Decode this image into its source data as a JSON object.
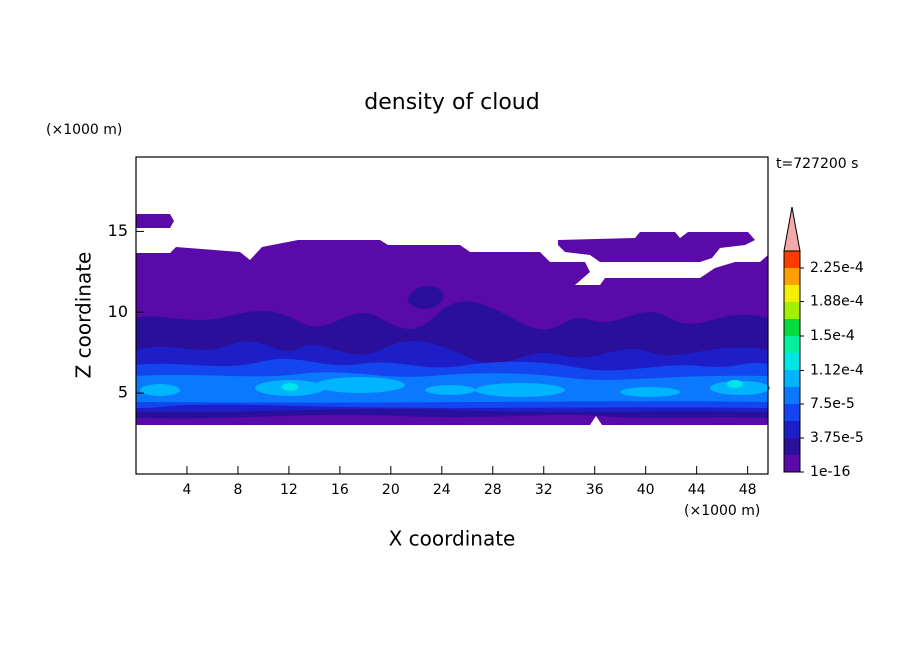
{
  "chart_data": {
    "type": "contour",
    "title": "density of cloud",
    "x_label": "X coordinate",
    "y_label": "Z coordinate",
    "x_unit": "(×1000 m)",
    "y_unit": "(×1000 m)",
    "time_label": "t=727200 s",
    "xlim": [
      0,
      49.6
    ],
    "ylim": [
      0,
      19.6
    ],
    "xticks": [
      4,
      8,
      12,
      16,
      20,
      24,
      28,
      32,
      36,
      40,
      44,
      48
    ],
    "yticks": [
      5,
      10,
      15
    ],
    "colorbar": {
      "ticks": [
        {
          "value": 1e-16,
          "label": "1e-16"
        },
        {
          "value": 3.75e-05,
          "label": "3.75e-5"
        },
        {
          "value": 7.5e-05,
          "label": "7.5e-5"
        },
        {
          "value": 0.000112,
          "label": "1.12e-4"
        },
        {
          "value": 0.00015,
          "label": "1.5e-4"
        },
        {
          "value": 0.000188,
          "label": "1.88e-4"
        },
        {
          "value": 0.000225,
          "label": "2.25e-4"
        }
      ],
      "colors": [
        "#5a0aa8",
        "#2a0f9a",
        "#1e1ec8",
        "#1446f0",
        "#0a78ff",
        "#00b4ff",
        "#00e6e6",
        "#00f0a0",
        "#00dc3c",
        "#a0f000",
        "#f0f000",
        "#ffa000",
        "#ff3c00"
      ],
      "extend_color": "#f4a8a8"
    }
  }
}
